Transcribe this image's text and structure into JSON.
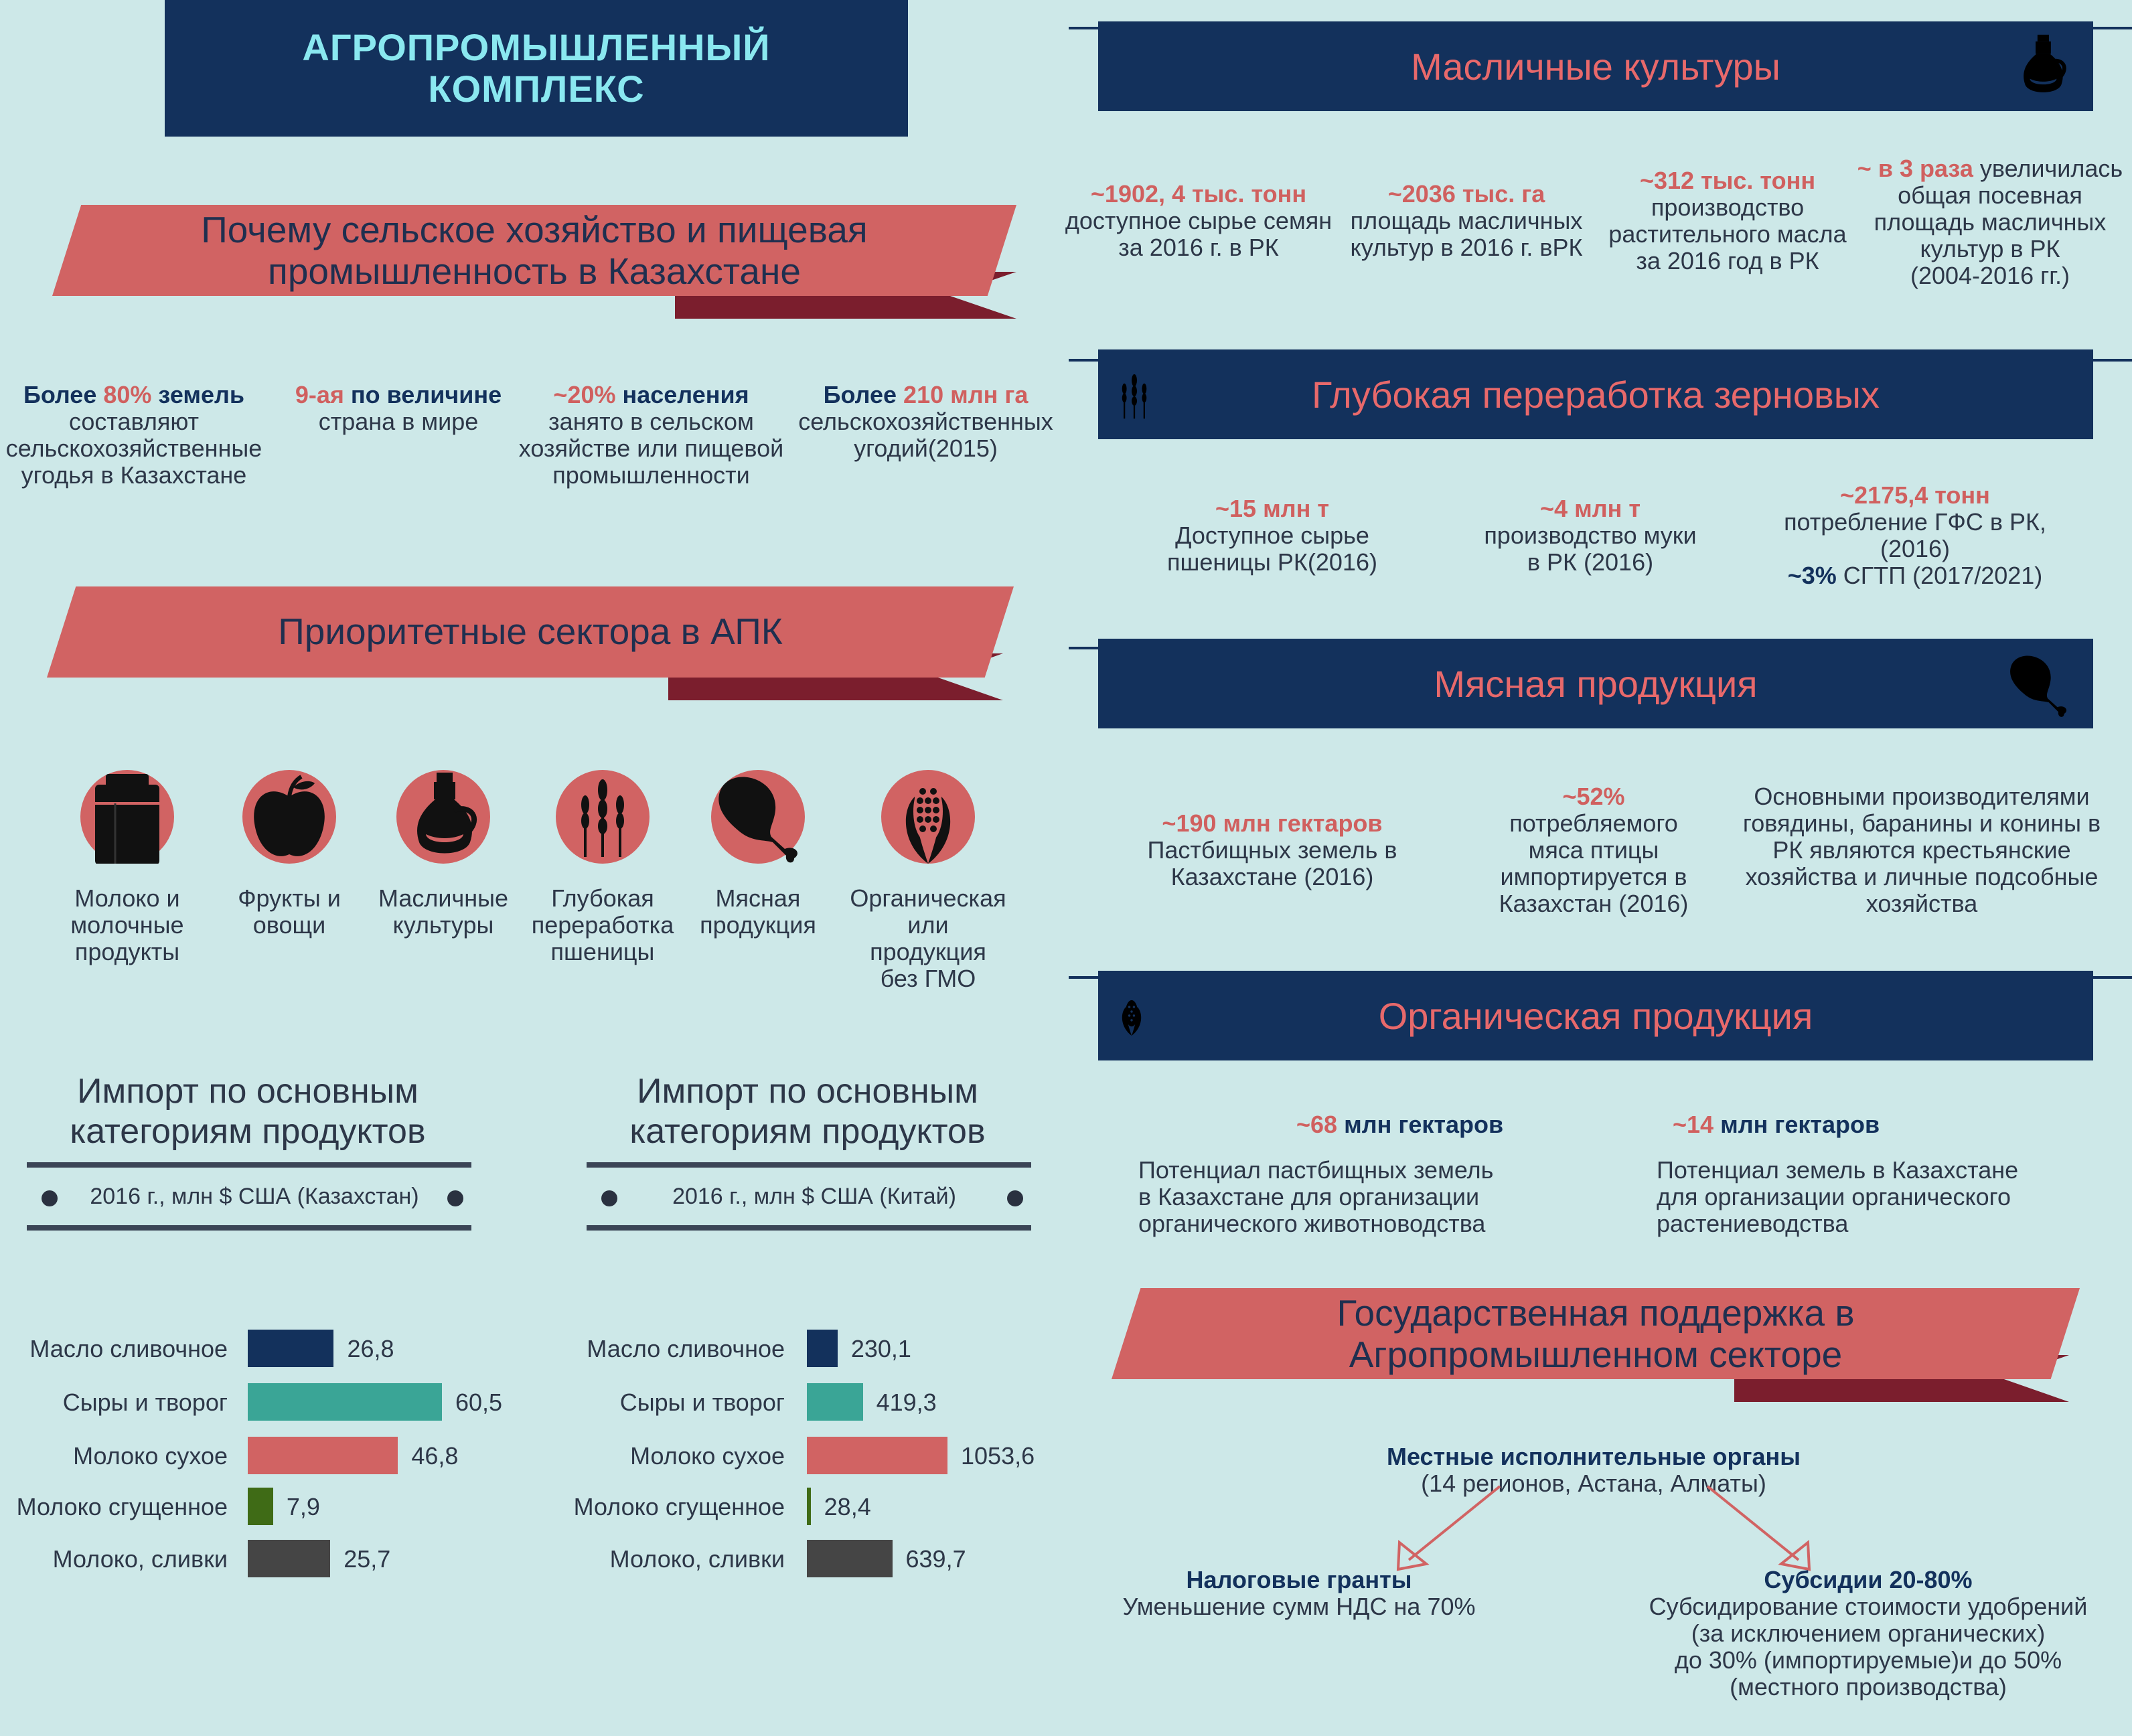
{
  "main_title": [
    "АГРОПРОМЫШЛЕННЫЙ",
    "КОМПЛЕКС"
  ],
  "why": {
    "title_lines": [
      "Почему сельское хозяйство и пищевая",
      "промышленность в Казахстане"
    ],
    "stats": [
      {
        "pre": "Более ",
        "hl": "80%",
        "post": " земель",
        "rest": [
          "составляют",
          "сельскохозяйственные",
          "угодья в Казахстане"
        ]
      },
      {
        "pre": "",
        "hl": "9-ая",
        "post": " по величине",
        "rest": [
          "страна в мире"
        ]
      },
      {
        "pre": "",
        "hl": "~20%",
        "post": " населения",
        "rest": [
          "занято в сельском",
          "хозяйстве или пищевой",
          "промышленности"
        ]
      },
      {
        "pre": "Более ",
        "hl": "210 млн га",
        "post": "",
        "rest": [
          "сельскохозяйственных",
          "угодий(2015)"
        ]
      }
    ]
  },
  "priority": {
    "title": "Приоритетные сектора в АПК",
    "sectors": [
      {
        "label": [
          "Молоко и",
          "молочные",
          "продукты"
        ],
        "icon": "milk-can-icon"
      },
      {
        "label": [
          "Фрукты и",
          "овощи"
        ],
        "icon": "apple-icon"
      },
      {
        "label": [
          "Масличные",
          "культуры"
        ],
        "icon": "oil-jug-icon"
      },
      {
        "label": [
          "Глубокая",
          "переработка",
          "пшеницы"
        ],
        "icon": "wheat-icon"
      },
      {
        "label": [
          "Мясная",
          "продукция"
        ],
        "icon": "drumstick-icon"
      },
      {
        "label": [
          "Органическая",
          "или продукция",
          "без ГМО"
        ],
        "icon": "corn-icon"
      }
    ]
  },
  "imports": [
    {
      "title": [
        "Импорт по основным",
        "категориям продуктов"
      ],
      "subtitle": "2016 г., млн $ США (Казахстан)",
      "categories": [
        "Масло сливочное",
        "Сыры и творог",
        "Молоко сухое",
        "Молоко сгущенное",
        "Молоко, сливки"
      ],
      "values": [
        26.8,
        60.5,
        46.8,
        7.9,
        25.7
      ],
      "labels": [
        "26,8",
        "60,5",
        "46,8",
        "7,9",
        "25,7"
      ]
    },
    {
      "title": [
        "Импорт по основным",
        "категориям продуктов"
      ],
      "subtitle": "2016 г., млн $ США (Китай)",
      "categories": [
        "Масло сливочное",
        "Сыры и творог",
        "Молоко сухое",
        "Молоко сгущенное",
        "Молоко, сливки"
      ],
      "values": [
        230.1,
        419.3,
        1053.6,
        28.4,
        639.7
      ],
      "labels": [
        "230,1",
        "419,3",
        "1053,6",
        "28,4",
        "639,7"
      ]
    }
  ],
  "bar_colors": [
    "#13315c",
    "#3aa596",
    "#d16363",
    "#3f6b16",
    "#454545"
  ],
  "oil": {
    "title": "Масличные культуры",
    "stats": [
      {
        "hl": "~1902, 4 тыс. тонн",
        "rest": [
          "доступное сырье семян",
          "за 2016 г. в РК"
        ]
      },
      {
        "hl": "~2036 тыс. га",
        "rest": [
          "площадь масличных",
          "культур в 2016 г. вРК"
        ]
      },
      {
        "hl": "~312 тыс. тонн",
        "rest": [
          "производство",
          "растительного масла",
          "за 2016 год в РК"
        ]
      },
      {
        "hl": "~ в 3 раза",
        "hl_post": " увеличилась",
        "rest": [
          "общая посевная",
          "площадь масличных",
          "культур в РК",
          "(2004-2016 гг.)"
        ]
      }
    ]
  },
  "grain": {
    "title": "Глубокая переработка зерновых",
    "stats": [
      {
        "hl": "~15 млн т",
        "rest": [
          "Доступное сырье",
          "пшеницы РК(2016)"
        ]
      },
      {
        "hl": "~4 млн т",
        "rest": [
          "производство муки",
          "в РК (2016)"
        ]
      },
      {
        "hl": "~2175,4 тонн",
        "rest": [
          "потребление ГФС в РК,",
          "(2016)"
        ],
        "extra_bold": "~3%",
        "extra": " СГТП (2017/2021)"
      }
    ]
  },
  "meat": {
    "title": "Мясная продукция",
    "stats": [
      {
        "hl": "~190 млн гектаров",
        "rest": [
          "Пастбищных земель в",
          "Казахстане (2016)"
        ]
      },
      {
        "hl": "~52%",
        "rest": [
          "потребляемого",
          "мяса птицы",
          "импортируется в",
          "Казахстан (2016)"
        ]
      },
      {
        "hl": "",
        "rest": [
          "Основными производителями",
          "говядины, баранины и конины в",
          "РК являются крестьянские",
          "хозяйства и личные подсобные",
          "хозяйства"
        ]
      }
    ]
  },
  "organic": {
    "title": "Органическая продукция",
    "stats": [
      {
        "hl": "~68",
        "hl_post": " млн гектаров",
        "rest": [
          "Потенциал пастбищных земель",
          "в Казахстане для организации",
          "органического животноводства"
        ]
      },
      {
        "hl": "~14",
        "hl_post": " млн гектаров",
        "rest": [
          "Потенциал земель в Казахстане",
          "для организации органического",
          "растениеводства"
        ]
      }
    ]
  },
  "support": {
    "title_lines": [
      "Государственная поддержка в",
      "Агропромышленном секторе"
    ],
    "top_bold": "Местные исполнительные органы",
    "top_sub": "(14 регионов, Астана, Алматы)",
    "left_bold": "Налоговые гранты",
    "left_sub": "Уменьшение сумм НДС на 70%",
    "right_bold": "Субсидии 20-80%",
    "right_sub": [
      "Субсидирование стоимости удобрений",
      "(за исключением органических)",
      "до 30% (импортируемые)и до 50%",
      "(местного производства)"
    ]
  }
}
